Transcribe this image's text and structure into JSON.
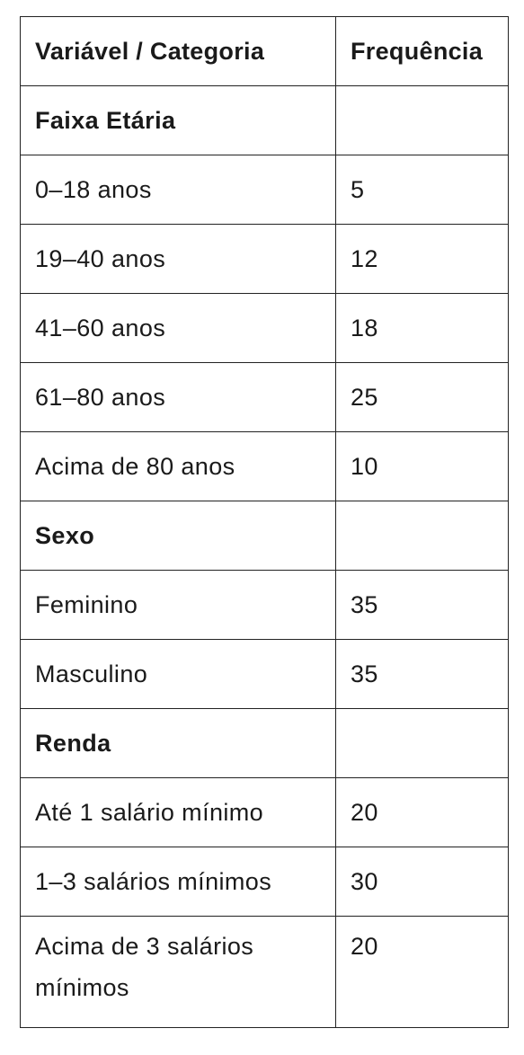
{
  "header": {
    "col1": "Variável / Categoria",
    "col2": "Frequência"
  },
  "rows": [
    {
      "label": "Faixa Etária",
      "value": "",
      "section": true
    },
    {
      "label": "0–18 anos",
      "value": "5"
    },
    {
      "label": "19–40 anos",
      "value": "12"
    },
    {
      "label": "41–60 anos",
      "value": "18"
    },
    {
      "label": "61–80 anos",
      "value": "25"
    },
    {
      "label": "Acima de 80 anos",
      "value": "10"
    },
    {
      "label": "Sexo",
      "value": "",
      "section": true
    },
    {
      "label": "Feminino",
      "value": "35"
    },
    {
      "label": "Masculino",
      "value": "35"
    },
    {
      "label": "Renda",
      "value": "",
      "section": true
    },
    {
      "label": "Até 1 salário mínimo",
      "value": "20"
    },
    {
      "label": "1–3 salários mínimos",
      "value": "30"
    },
    {
      "label": "Acima de 3 salários mínimos",
      "value": "20"
    }
  ]
}
